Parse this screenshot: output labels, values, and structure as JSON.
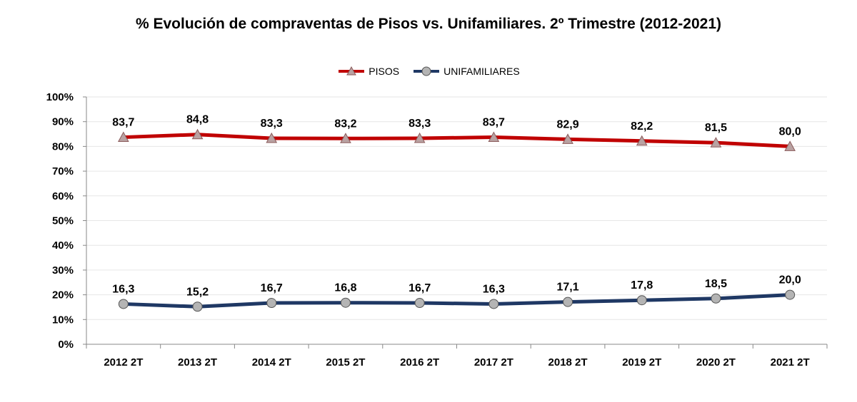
{
  "chart_data": {
    "type": "line",
    "title": "% Evolución de compraventas de Pisos vs. Unifamiliares.  2º  Trimestre (2012-2021)",
    "categories": [
      "2012 2T",
      "2013 2T",
      "2014 2T",
      "2015 2T",
      "2016 2T",
      "2017 2T",
      "2018 2T",
      "2019 2T",
      "2020 2T",
      "2021 2T"
    ],
    "ylim": [
      0,
      100
    ],
    "yticks": [
      "0%",
      "10%",
      "20%",
      "30%",
      "40%",
      "50%",
      "60%",
      "70%",
      "80%",
      "90%",
      "100%"
    ],
    "grid": true,
    "legend_position": "top-center",
    "series": [
      {
        "name": "PISOS",
        "color": "#C00000",
        "marker": "triangle",
        "values": [
          83.7,
          84.8,
          83.3,
          83.2,
          83.3,
          83.7,
          82.9,
          82.2,
          81.5,
          80.0
        ],
        "labels": [
          "83,7",
          "84,8",
          "83,3",
          "83,2",
          "83,3",
          "83,7",
          "82,9",
          "82,2",
          "81,5",
          "80,0"
        ]
      },
      {
        "name": "UNIFAMILIARES",
        "color": "#1F3864",
        "marker": "circle",
        "values": [
          16.3,
          15.2,
          16.7,
          16.8,
          16.7,
          16.3,
          17.1,
          17.8,
          18.5,
          20.0
        ],
        "labels": [
          "16,3",
          "15,2",
          "16,7",
          "16,8",
          "16,7",
          "16,3",
          "17,1",
          "17,8",
          "18,5",
          "20,0"
        ]
      }
    ]
  }
}
